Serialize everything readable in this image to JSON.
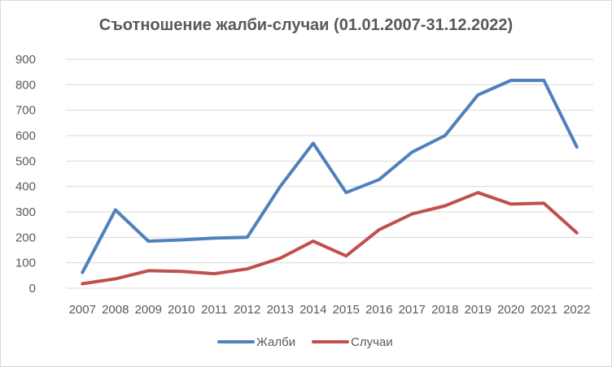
{
  "chart_data": {
    "type": "line",
    "title": "Съотношение жалби-случаи (01.01.2007-31.12.2022)",
    "categories": [
      "2007",
      "2008",
      "2009",
      "2010",
      "2011",
      "2012",
      "2013",
      "2014",
      "2015",
      "2016",
      "2017",
      "2018",
      "2019",
      "2020",
      "2021",
      "2022"
    ],
    "series": [
      {
        "name": "Жалби",
        "color": "#4f81bd",
        "values": [
          62,
          308,
          185,
          190,
          197,
          200,
          400,
          570,
          376,
          427,
          535,
          600,
          760,
          817,
          817,
          555
        ]
      },
      {
        "name": "Случаи",
        "color": "#c0504d",
        "values": [
          18,
          37,
          69,
          66,
          57,
          76,
          118,
          185,
          127,
          230,
          292,
          324,
          376,
          331,
          334,
          218
        ]
      }
    ],
    "ylim": [
      0,
      900
    ],
    "yticks": [
      "0",
      "100",
      "200",
      "300",
      "400",
      "500",
      "600",
      "700",
      "800",
      "900"
    ],
    "grid": true,
    "legend": "bottom"
  }
}
